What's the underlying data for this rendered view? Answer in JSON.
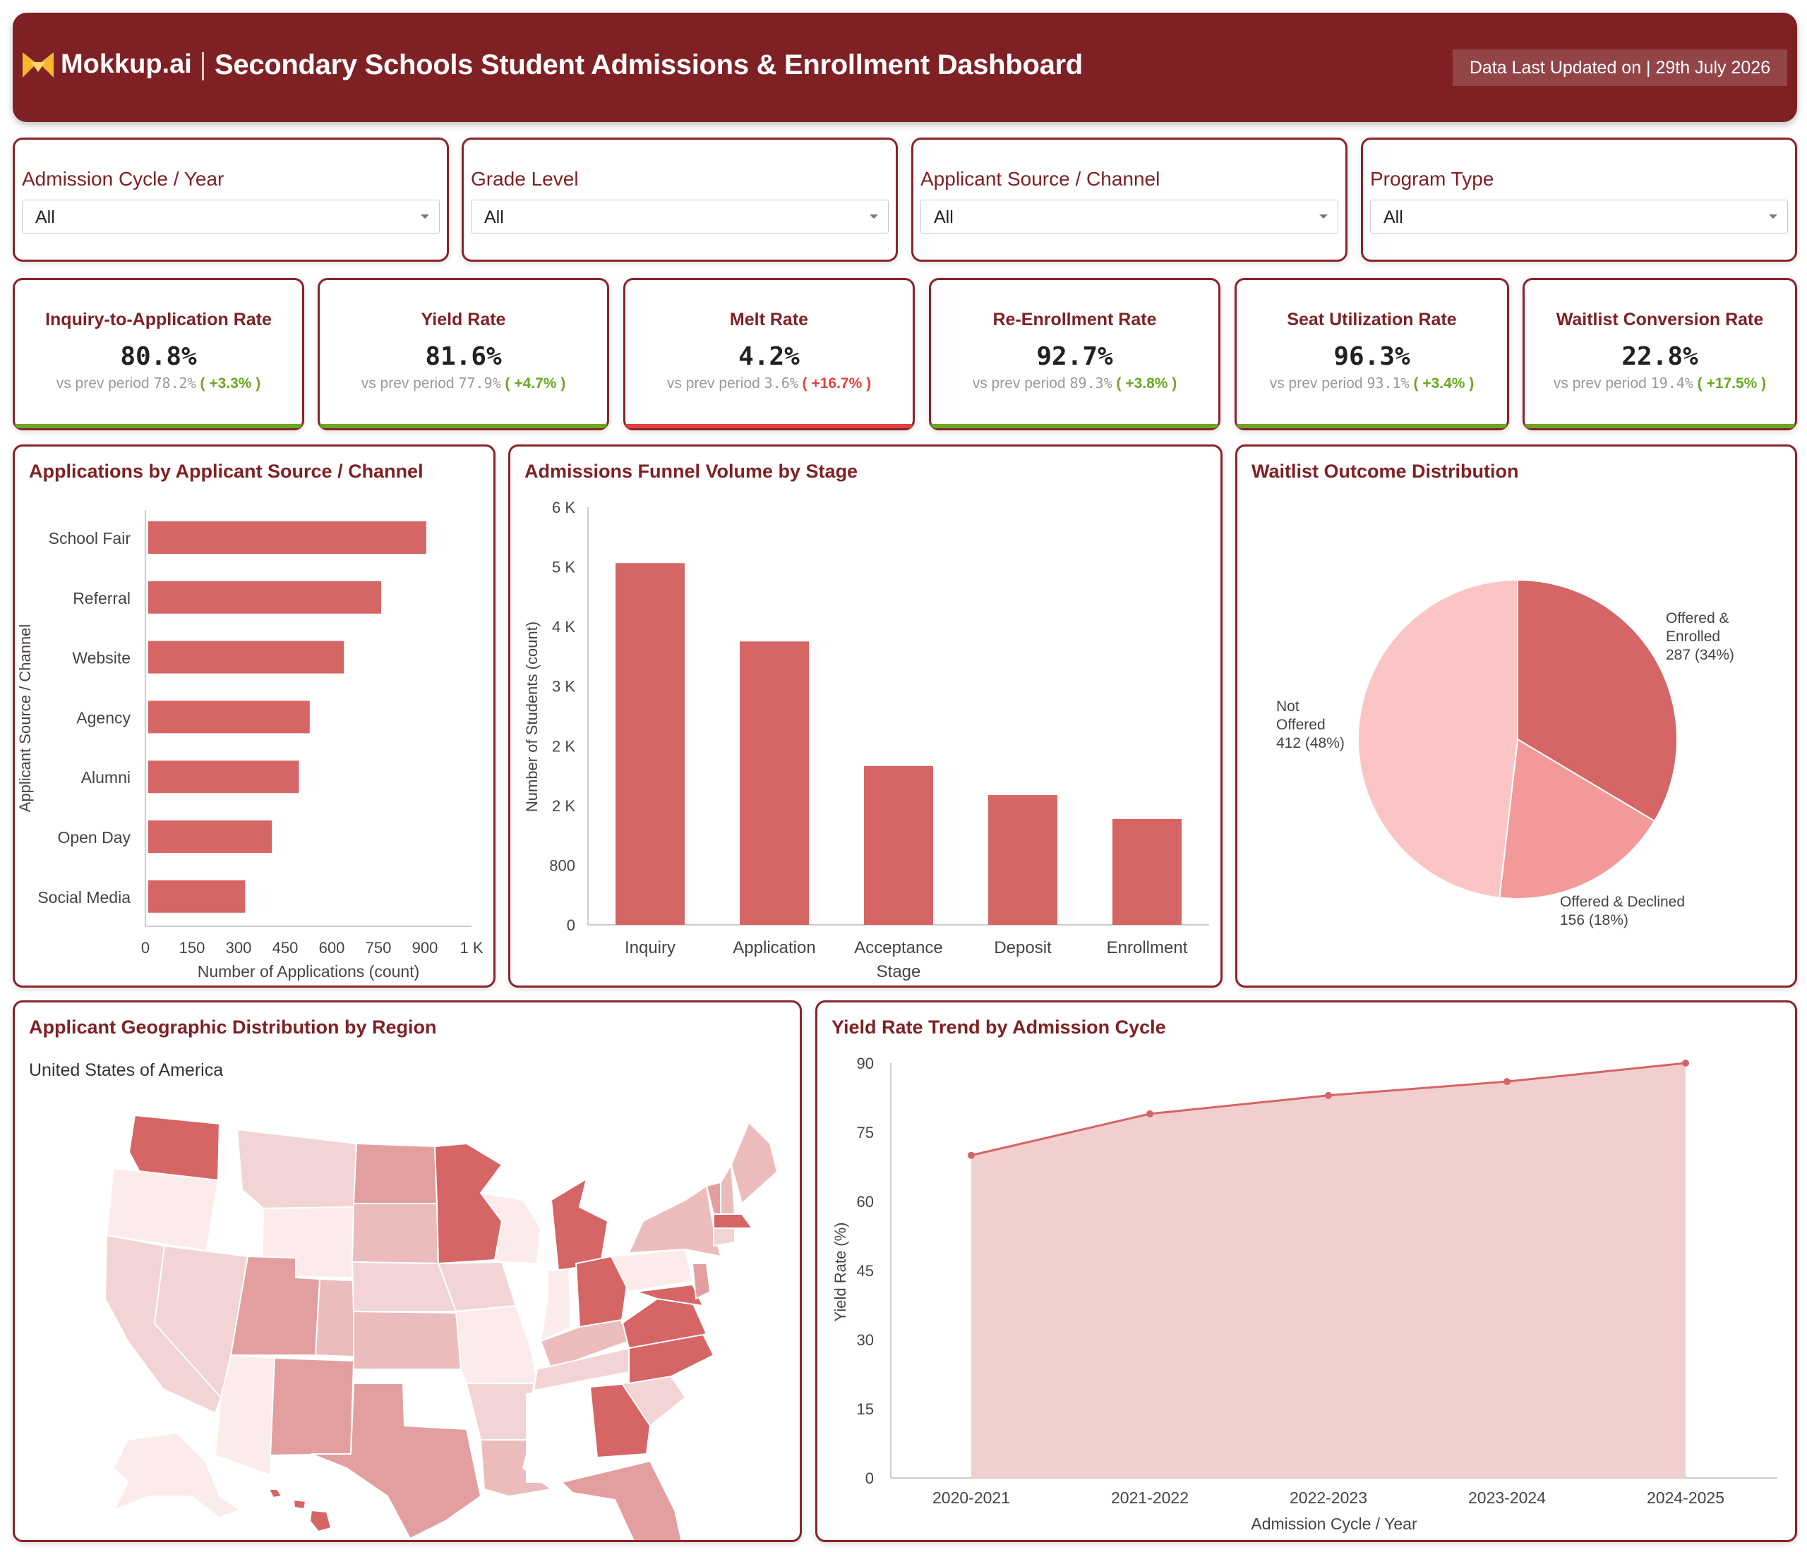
{
  "header": {
    "brand": "Mokkup.ai",
    "title": "Secondary Schools Student Admissions & Enrollment Dashboard",
    "updated": "Data Last Updated on | 29th July 2026",
    "colors": {
      "background": "#7f2124",
      "accent": "#f5b82e"
    }
  },
  "filters": [
    {
      "label": "Admission Cycle / Year",
      "value": "All"
    },
    {
      "label": "Grade Level",
      "value": "All"
    },
    {
      "label": "Applicant Source / Channel",
      "value": "All"
    },
    {
      "label": "Program Type",
      "value": "All"
    }
  ],
  "kpis": [
    {
      "title": "Inquiry-to-Application Rate",
      "value": "80.8%",
      "prefix": "vs prev period",
      "prev": "78.2%",
      "delta": "( +3.3% )",
      "status": "good"
    },
    {
      "title": "Yield Rate",
      "value": "81.6%",
      "prefix": "vs prev period",
      "prev": "77.9%",
      "delta": "( +4.7% )",
      "status": "good"
    },
    {
      "title": "Melt Rate",
      "value": "4.2%",
      "prefix": "vs prev period",
      "prev": "3.6%",
      "delta": "( +16.7% )",
      "status": "bad"
    },
    {
      "title": "Re-Enrollment Rate",
      "value": "92.7%",
      "prefix": "vs prev period",
      "prev": "89.3%",
      "delta": "( +3.8% )",
      "status": "good"
    },
    {
      "title": "Seat Utilization Rate",
      "value": "96.3%",
      "prefix": "vs prev period",
      "prev": "93.1%",
      "delta": "( +3.4% )",
      "status": "good"
    },
    {
      "title": "Waitlist Conversion Rate",
      "value": "22.8%",
      "prefix": "vs prev period",
      "prev": "19.4%",
      "delta": "( +17.5% )",
      "status": "good"
    }
  ],
  "colors": {
    "good": "#6aa820",
    "bad": "#e0413e",
    "bar": "#d66565",
    "title": "#7f2124"
  },
  "source_chart": {
    "title": "Applications by Applicant Source / Channel",
    "chart_data": {
      "type": "bar",
      "orientation": "horizontal",
      "categories": [
        "School Fair",
        "Referral",
        "Website",
        "Agency",
        "Alumni",
        "Open Day",
        "Social Media"
      ],
      "values": [
        895,
        750,
        630,
        520,
        485,
        398,
        312
      ],
      "xlabel": "Number of Applications (count)",
      "ylabel": "Applicant Source / Channel",
      "xlim": [
        0,
        1050
      ],
      "xticks": [
        "0",
        "150",
        "300",
        "450",
        "600",
        "750",
        "900",
        "1 K"
      ]
    }
  },
  "funnel_chart": {
    "title": "Admissions Funnel Volume by Stage",
    "chart_data": {
      "type": "bar",
      "categories": [
        "Inquiry",
        "Application",
        "Acceptance",
        "Deposit",
        "Enrollment"
      ],
      "values": [
        4850,
        3800,
        2130,
        1740,
        1420
      ],
      "xlabel": "Stage",
      "ylabel": "Number of Students (count)",
      "ylim": [
        0,
        5600
      ],
      "yticks": [
        "0",
        "800",
        "2 K",
        "2 K",
        "3 K",
        "4 K",
        "5 K",
        "6 K"
      ]
    }
  },
  "waitlist_chart": {
    "title": "Waitlist Outcome Distribution",
    "chart_data": {
      "type": "pie",
      "slices": [
        {
          "label": [
            "Offered &",
            "Enrolled",
            "287 (34%)"
          ],
          "value": 287,
          "color": "#d66565"
        },
        {
          "label": [
            "Offered & Declined",
            "156 (18%)"
          ],
          "value": 156,
          "color": "#f29a9a"
        },
        {
          "label": [
            "Not",
            "Offered",
            "412 (48%)"
          ],
          "value": 412,
          "color": "#fcc5c5"
        }
      ]
    }
  },
  "map_chart": {
    "title": "Applicant Geographic Distribution by Region",
    "subtitle": "United States of America",
    "scale_colors": [
      "#fbeceb",
      "#f3d4d4",
      "#ecbcbc",
      "#e39f9f",
      "#d66565"
    ]
  },
  "yield_chart": {
    "title": "Yield Rate Trend by Admission Cycle",
    "chart_data": {
      "type": "area",
      "x": [
        "2020-2021",
        "2021-2022",
        "2022-2023",
        "2023-2024",
        "2024-2025"
      ],
      "values": [
        70,
        79,
        83,
        86,
        90
      ],
      "xlabel": "Admission Cycle / Year",
      "ylabel": "Yield Rate (%)",
      "ylim": [
        0,
        90
      ],
      "yticks": [
        "0",
        "15",
        "30",
        "45",
        "60",
        "75",
        "90"
      ]
    }
  }
}
